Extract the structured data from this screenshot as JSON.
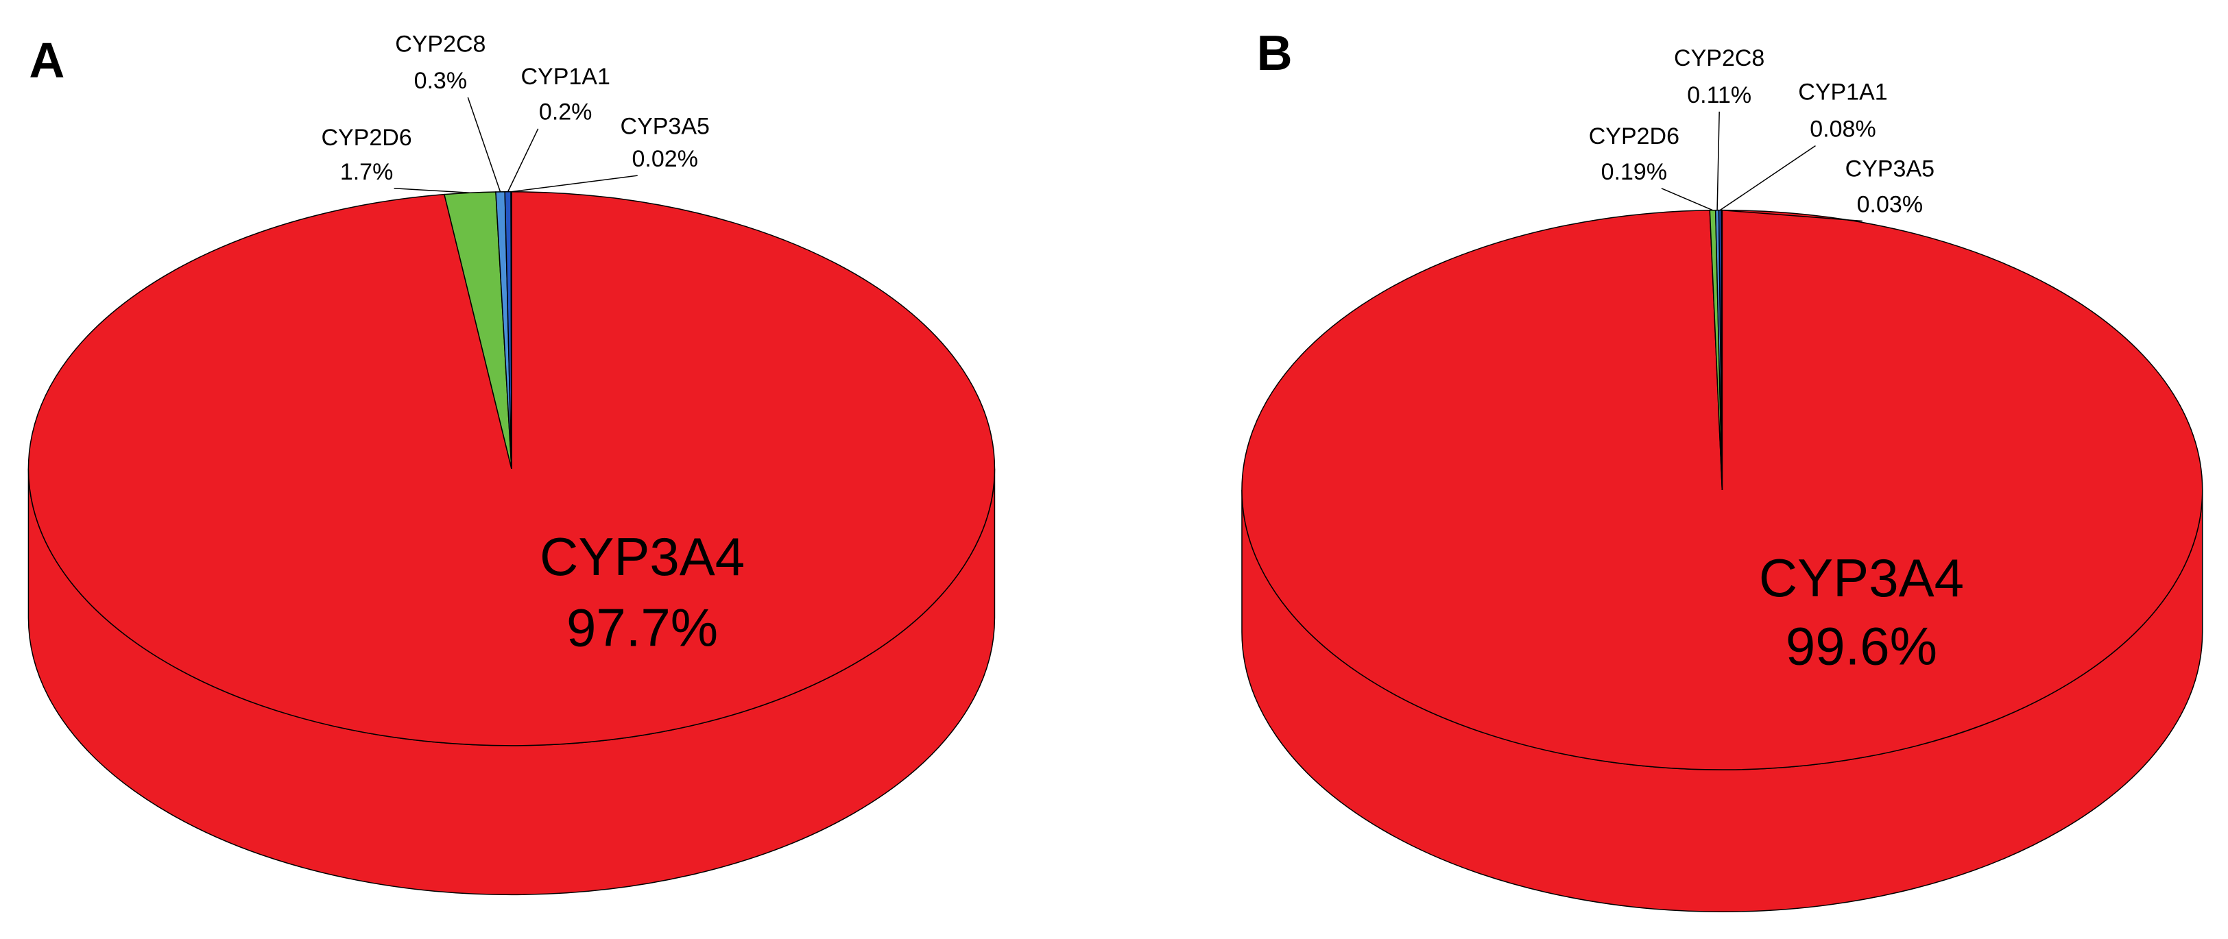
{
  "chart_data": [
    {
      "type": "pie",
      "panel_label": "A",
      "categories": [
        "CYP3A4",
        "CYP2D6",
        "CYP2C8",
        "CYP1A1",
        "CYP3A5"
      ],
      "values": [
        97.7,
        1.7,
        0.3,
        0.2,
        0.02
      ],
      "value_labels": [
        "97.7%",
        "1.7%",
        "0.3%",
        "0.2%",
        "0.02%"
      ],
      "colors": [
        "#ec1c24",
        "#6cbf45",
        "#4a90d9",
        "#2456c4",
        "#1c2a8a"
      ]
    },
    {
      "type": "pie",
      "panel_label": "B",
      "categories": [
        "CYP3A4",
        "CYP2D6",
        "CYP2C8",
        "CYP1A1",
        "CYP3A5"
      ],
      "values": [
        99.6,
        0.19,
        0.11,
        0.08,
        0.03
      ],
      "value_labels": [
        "99.6%",
        "0.19%",
        "0.11%",
        "0.08%",
        "0.03%"
      ],
      "colors": [
        "#ec1c24",
        "#6cbf45",
        "#4a90d9",
        "#2456c4",
        "#1c2a8a"
      ]
    }
  ]
}
